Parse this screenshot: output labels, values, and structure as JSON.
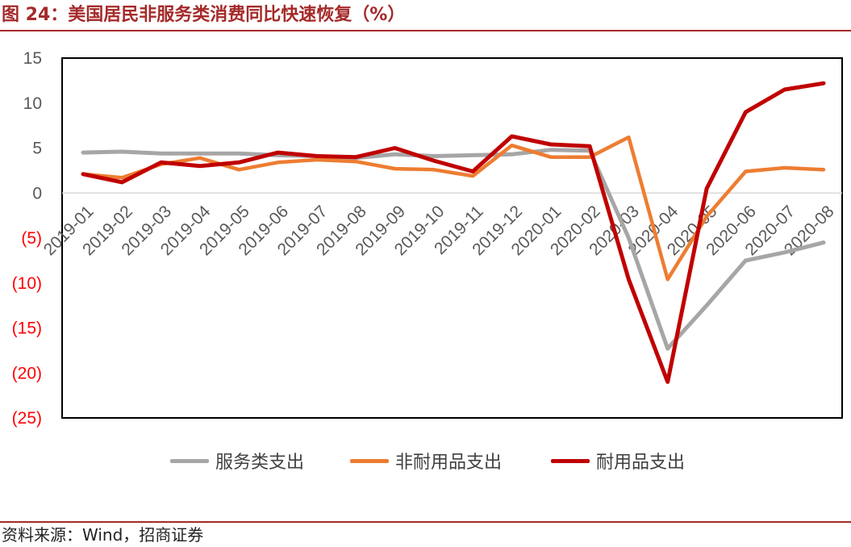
{
  "header": {
    "title": "图 24：美国居民非服务类消费同比快速恢复（%）"
  },
  "footer": {
    "source": "资料来源：Wind，招商证券"
  },
  "colors": {
    "services": "#a6a6a6",
    "nondurable": "#ed7d31",
    "durable": "#c00000",
    "negative_tick": "#ff0000",
    "title": "#a52a2a"
  },
  "chart_data": {
    "type": "line",
    "title": "",
    "xlabel": "",
    "ylabel": "",
    "ylim": [
      -25,
      15
    ],
    "yticks": [
      {
        "value": 15,
        "label": "15"
      },
      {
        "value": 10,
        "label": "10"
      },
      {
        "value": 5,
        "label": "5"
      },
      {
        "value": 0,
        "label": "0"
      },
      {
        "value": -5,
        "label": "(5)"
      },
      {
        "value": -10,
        "label": "(10)"
      },
      {
        "value": -15,
        "label": "(15)"
      },
      {
        "value": -20,
        "label": "(20)"
      },
      {
        "value": -25,
        "label": "(25)"
      }
    ],
    "grid": false,
    "legend_position": "bottom",
    "categories": [
      "2019-01",
      "2019-02",
      "2019-03",
      "2019-04",
      "2019-05",
      "2019-06",
      "2019-07",
      "2019-08",
      "2019-09",
      "2019-10",
      "2019-11",
      "2019-12",
      "2020-01",
      "2020-02",
      "2020-03",
      "2020-04",
      "2020-05",
      "2020-06",
      "2020-07",
      "2020-08"
    ],
    "series": [
      {
        "name": "服务类支出",
        "values": [
          4.5,
          4.6,
          4.4,
          4.4,
          4.4,
          4.2,
          4.1,
          3.9,
          4.3,
          4.1,
          4.2,
          4.3,
          4.8,
          4.7,
          -5.0,
          -17.3,
          -12.5,
          -7.5,
          -6.6,
          -5.5
        ]
      },
      {
        "name": "非耐用品支出",
        "values": [
          2.1,
          1.7,
          3.2,
          3.9,
          2.6,
          3.4,
          3.7,
          3.5,
          2.7,
          2.6,
          1.9,
          5.3,
          4.0,
          4.0,
          6.2,
          -9.6,
          -2.6,
          2.4,
          2.8,
          2.6
        ]
      },
      {
        "name": "耐用品支出",
        "values": [
          2.1,
          1.2,
          3.4,
          3.0,
          3.4,
          4.5,
          4.1,
          4.0,
          5.0,
          3.6,
          2.4,
          6.3,
          5.4,
          5.2,
          -9.6,
          -21.0,
          0.5,
          9.0,
          11.5,
          12.2
        ]
      }
    ]
  }
}
